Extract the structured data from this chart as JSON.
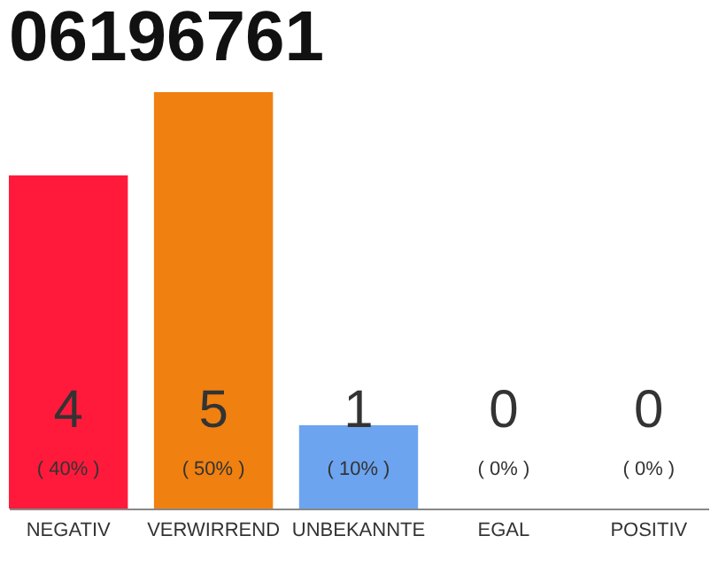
{
  "chart_data": {
    "type": "bar",
    "title": "06196761",
    "categories": [
      "NEGATIV",
      "VERWIRREND",
      "UNBEKANNTE",
      "EGAL",
      "POSITIV"
    ],
    "values": [
      40,
      50,
      10,
      0,
      0
    ],
    "colors": [
      "#ff1a3c",
      "#f08010",
      "#6ca4f0",
      "#cccccc",
      "#cccccc"
    ],
    "value_labels": [
      "( 40% )",
      "( 50% )",
      "( 10% )",
      "( 0% )",
      "( 0% )"
    ],
    "annotations": [
      "4",
      "5",
      "1",
      "0",
      "0"
    ],
    "tick_labels": "x"
  }
}
